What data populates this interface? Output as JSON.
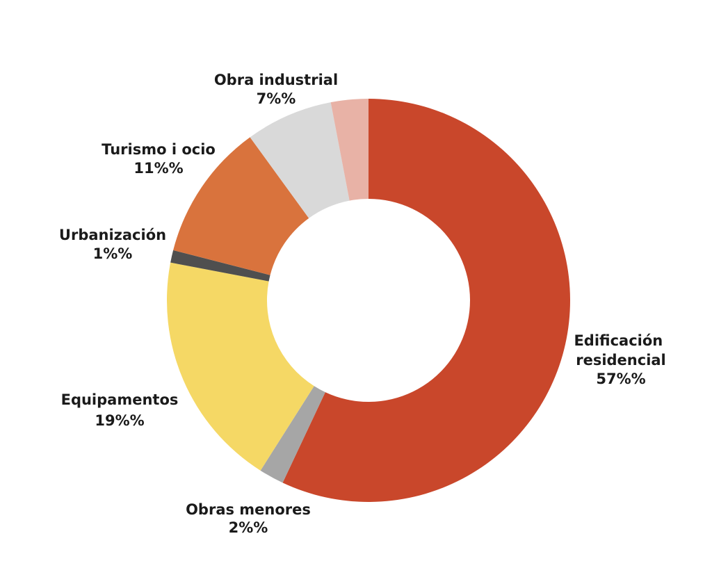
{
  "chart_data": {
    "type": "pie",
    "donut": true,
    "title": "",
    "slices": [
      {
        "label": "Edificación residencial",
        "value": 57,
        "value_text": "57%%",
        "color": "#c9472b"
      },
      {
        "label": "Obras menores",
        "value": 2,
        "value_text": "2%%",
        "color": "#a6a6a6"
      },
      {
        "label": "Equipamentos",
        "value": 19,
        "value_text": "19%%",
        "color": "#f5d865"
      },
      {
        "label": "Urbanización",
        "value": 1,
        "value_text": "1%%",
        "color": "#4f4f4f"
      },
      {
        "label": "Turismo i ocio",
        "value": 11,
        "value_text": "11%%",
        "color": "#d9733d"
      },
      {
        "label": "Obra industrial",
        "value": 7,
        "value_text": "7%%",
        "color": "#d9d9d9"
      },
      {
        "label": "",
        "value": 3,
        "value_text": "",
        "color": "#e8b2a6"
      }
    ]
  }
}
